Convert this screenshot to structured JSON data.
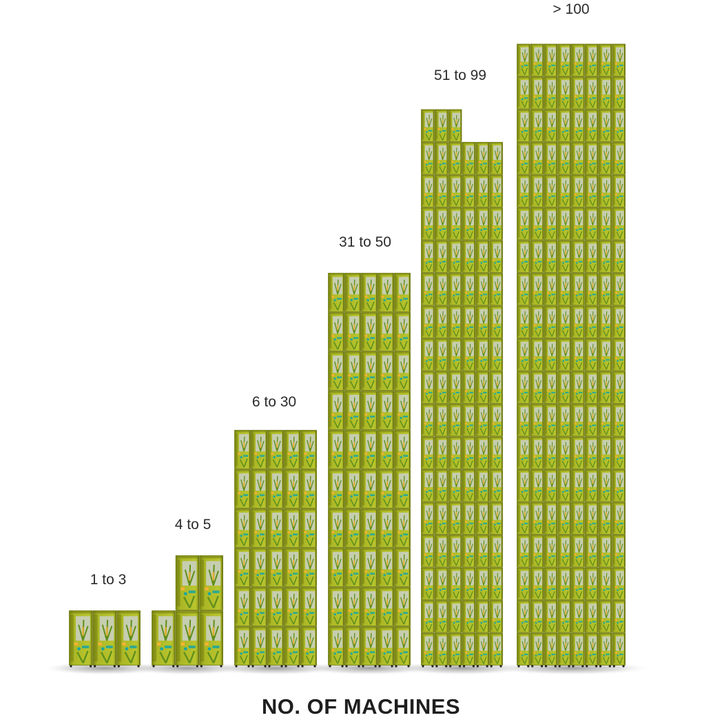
{
  "chart_data": {
    "type": "bar",
    "xlabel": "NO. OF MACHINES",
    "ylabel": "",
    "title": "",
    "bar_style": "stacked vending-machine pictograms",
    "colors": {
      "machine_body": "#aab624",
      "machine_dark": "#6f7a10",
      "machine_window": "#c9cfc0",
      "accent_orange": "#f2b233",
      "accent_teal": "#1aa6a0",
      "accent_leaf": "#5f8f1c",
      "shadow": "#9a9a9a"
    },
    "categories": [
      "1 to 3",
      "4 to 5",
      "6 to 30",
      "31 to 50",
      "51 to 99",
      "> 100"
    ],
    "series": [
      {
        "values": [
          3,
          5,
          30,
          50,
          99,
          136
        ]
      }
    ]
  }
}
